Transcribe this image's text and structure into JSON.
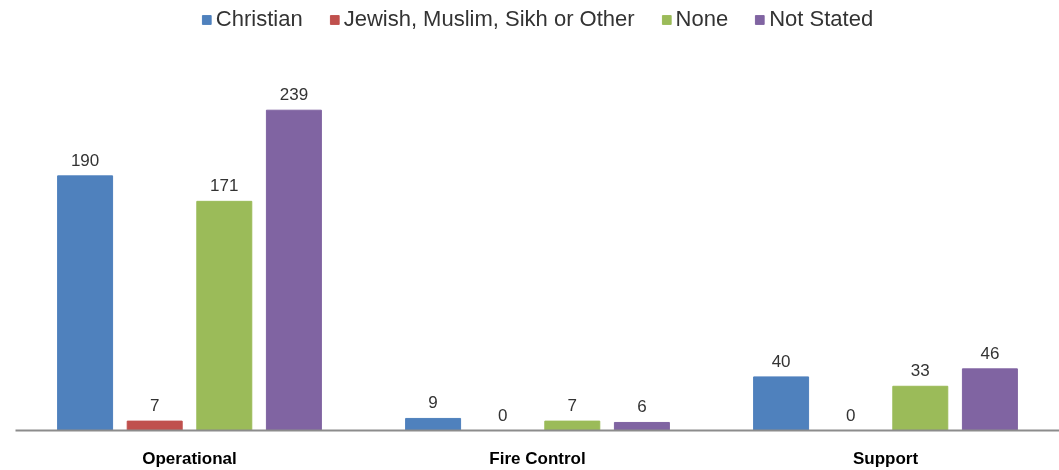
{
  "chart_data": {
    "type": "bar",
    "categories": [
      "Operational",
      "Fire Control",
      "Support"
    ],
    "series": [
      {
        "name": "Christian",
        "color": "#4f81bd",
        "values": [
          190,
          9,
          40
        ]
      },
      {
        "name": "Jewish, Muslim, Sikh or Other",
        "color": "#c0504d",
        "values": [
          7,
          0,
          0
        ]
      },
      {
        "name": "None",
        "color": "#9bbb59",
        "values": [
          171,
          7,
          33
        ]
      },
      {
        "name": "Not Stated",
        "color": "#8064a2",
        "values": [
          239,
          6,
          46
        ]
      }
    ],
    "data_labels": true,
    "legend": "top"
  }
}
